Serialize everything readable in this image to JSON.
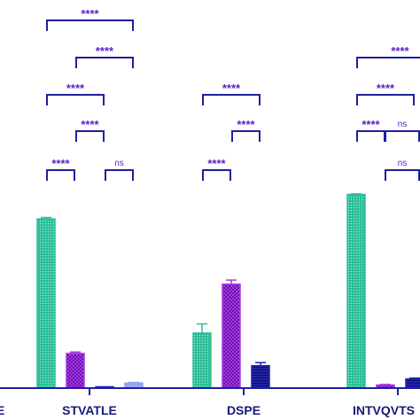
{
  "chart_data": {
    "type": "bar",
    "categories": [
      "TTE",
      "STVATLE",
      "DSPE",
      "INTVQVTS"
    ],
    "xlabel": "",
    "ylabel": "",
    "ylim": [
      0,
      100
    ],
    "grid": false,
    "legend": "none",
    "series": [
      {
        "color": "#2bbf9a",
        "values": [
          null,
          83,
          27,
          95
        ],
        "errors": [
          null,
          0.7,
          4.5,
          0.3
        ]
      },
      {
        "color": "#a43ae0",
        "values": [
          null,
          17,
          51,
          1.5
        ],
        "errors": [
          null,
          0.7,
          2.0,
          0.3
        ]
      },
      {
        "color": "#2222a8",
        "values": [
          null,
          0.2,
          11,
          4.5
        ],
        "errors": [
          null,
          0.2,
          1.5,
          0.4
        ]
      },
      {
        "color": "#8fa4f0",
        "values": [
          null,
          2.5,
          null,
          null
        ],
        "errors": [
          null,
          0.3,
          null,
          null
        ]
      }
    ],
    "significance": [
      {
        "category": "STVATLE",
        "pair": [
          1,
          2
        ],
        "label": "****"
      },
      {
        "category": "STVATLE",
        "pair": [
          3,
          4
        ],
        "label": "ns"
      },
      {
        "category": "STVATLE",
        "pair": [
          2,
          3
        ],
        "label": "****"
      },
      {
        "category": "STVATLE",
        "pair": [
          1,
          3
        ],
        "label": "****"
      },
      {
        "category": "STVATLE",
        "pair": [
          2,
          4
        ],
        "label": "****"
      },
      {
        "category": "STVATLE",
        "pair": [
          1,
          4
        ],
        "label": "****"
      },
      {
        "category": "DSPE",
        "pair": [
          1,
          2
        ],
        "label": "****"
      },
      {
        "category": "DSPE",
        "pair": [
          2,
          3
        ],
        "label": "****"
      },
      {
        "category": "DSPE",
        "pair": [
          1,
          3
        ],
        "label": "****"
      },
      {
        "category": "INTVQVTS",
        "pair": [
          1,
          2
        ],
        "label": "****"
      },
      {
        "category": "INTVQVTS",
        "pair": [
          3,
          4
        ],
        "label": "ns"
      },
      {
        "category": "INTVQVTS",
        "pair": [
          2,
          3
        ],
        "label": "ns"
      },
      {
        "category": "INTVQVTS",
        "pair": [
          1,
          3
        ],
        "label": "****"
      },
      {
        "category": "INTVQVTS",
        "pair": [
          1,
          4
        ],
        "label": "****"
      }
    ]
  },
  "colors": {
    "axis": "#1f1f9e",
    "bracket": "#1f1f9e",
    "label": "#1a1a7a",
    "sig_text": "#5b1fc4"
  }
}
